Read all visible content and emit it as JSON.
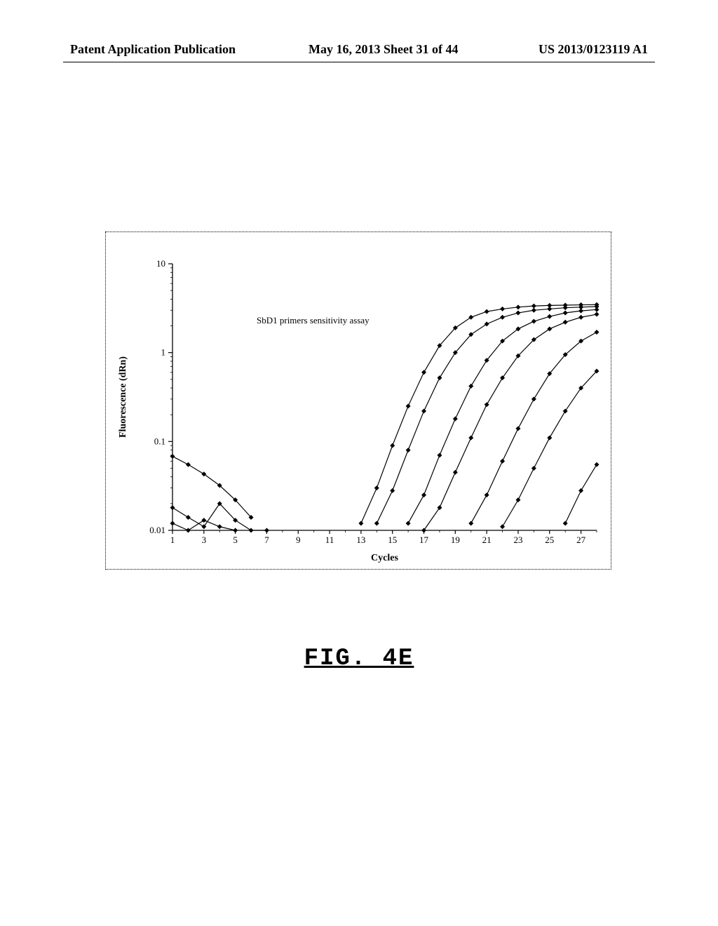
{
  "header": {
    "publication_type": "Patent Application Publication",
    "date_sheet": "May 16, 2013  Sheet 31 of 44",
    "pub_number": "US 2013/0123119 A1"
  },
  "figure_label": "FIG. 4E",
  "chart": {
    "type": "line",
    "title": "SbD1 primers sensitivity assay",
    "title_fontsize": 13,
    "xlabel": "Cycles",
    "ylabel": "Fluorescence (dRn)",
    "label_fontsize": 12,
    "xlim": [
      1,
      28
    ],
    "ylim": [
      0.01,
      10
    ],
    "yscale": "log",
    "xticks": [
      1,
      3,
      5,
      7,
      9,
      11,
      13,
      15,
      17,
      19,
      21,
      23,
      25,
      27
    ],
    "yticks": [
      0.01,
      0.1,
      1,
      10
    ],
    "ytick_labels": [
      "0.01",
      "0.1",
      "1",
      "10"
    ],
    "background_color": "#ffffff",
    "axis_color": "#000000",
    "line_color": "#000000",
    "line_width": 1.2,
    "marker": "diamond",
    "marker_size": 5,
    "marker_color": "#000000",
    "series": [
      {
        "name": "neg1",
        "x": [
          1,
          2,
          3,
          4,
          5,
          6
        ],
        "y": [
          0.068,
          0.055,
          0.043,
          0.032,
          0.022,
          0.014
        ]
      },
      {
        "name": "neg2",
        "x": [
          1,
          2,
          3,
          4,
          5,
          6,
          7
        ],
        "y": [
          0.018,
          0.014,
          0.011,
          0.02,
          0.013,
          0.01,
          0.01
        ]
      },
      {
        "name": "neg3",
        "x": [
          1,
          2,
          3,
          4,
          5
        ],
        "y": [
          0.012,
          0.01,
          0.013,
          0.011,
          0.01
        ]
      },
      {
        "name": "s1",
        "x": [
          13,
          14,
          15,
          16,
          17,
          18,
          19,
          20,
          21,
          22,
          23,
          24,
          25,
          26,
          27,
          28
        ],
        "y": [
          0.012,
          0.03,
          0.09,
          0.25,
          0.6,
          1.2,
          1.9,
          2.5,
          2.9,
          3.1,
          3.25,
          3.35,
          3.4,
          3.42,
          3.45,
          3.47
        ]
      },
      {
        "name": "s2",
        "x": [
          14,
          15,
          16,
          17,
          18,
          19,
          20,
          21,
          22,
          23,
          24,
          25,
          26,
          27,
          28
        ],
        "y": [
          0.012,
          0.028,
          0.08,
          0.22,
          0.52,
          1.0,
          1.6,
          2.1,
          2.5,
          2.8,
          3.0,
          3.1,
          3.2,
          3.25,
          3.3
        ]
      },
      {
        "name": "s3",
        "x": [
          16,
          17,
          18,
          19,
          20,
          21,
          22,
          23,
          24,
          25,
          26,
          27,
          28
        ],
        "y": [
          0.012,
          0.025,
          0.07,
          0.18,
          0.42,
          0.82,
          1.35,
          1.85,
          2.25,
          2.55,
          2.8,
          2.95,
          3.05
        ]
      },
      {
        "name": "s4",
        "x": [
          17,
          18,
          19,
          20,
          21,
          22,
          23,
          24,
          25,
          26,
          27,
          28
        ],
        "y": [
          0.01,
          0.018,
          0.045,
          0.11,
          0.26,
          0.52,
          0.92,
          1.4,
          1.85,
          2.2,
          2.5,
          2.7
        ]
      },
      {
        "name": "s5",
        "x": [
          20,
          21,
          22,
          23,
          24,
          25,
          26,
          27,
          28
        ],
        "y": [
          0.012,
          0.025,
          0.06,
          0.14,
          0.3,
          0.58,
          0.95,
          1.35,
          1.7
        ]
      },
      {
        "name": "s6",
        "x": [
          22,
          23,
          24,
          25,
          26,
          27,
          28
        ],
        "y": [
          0.011,
          0.022,
          0.05,
          0.11,
          0.22,
          0.4,
          0.62
        ]
      },
      {
        "name": "s7",
        "x": [
          26,
          27,
          28
        ],
        "y": [
          0.012,
          0.028,
          0.055
        ]
      }
    ]
  }
}
